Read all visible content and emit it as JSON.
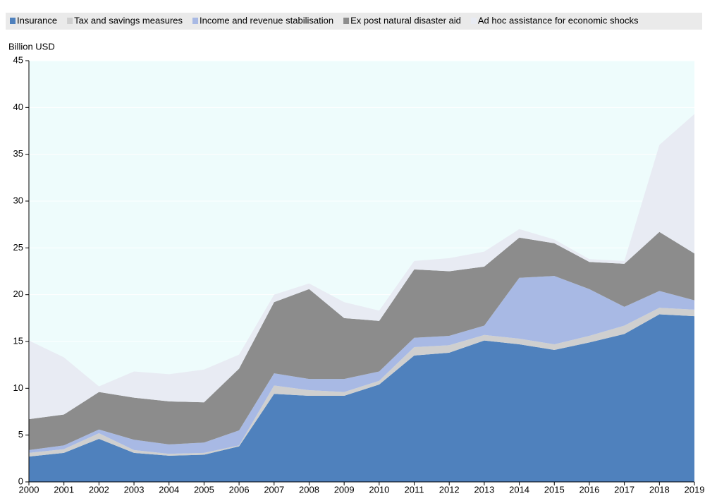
{
  "chart_data": {
    "type": "stacked-area",
    "y_label": "Billion USD",
    "categories": [
      "2000",
      "2001",
      "2002",
      "2003",
      "2004",
      "2005",
      "2006",
      "2007",
      "2008",
      "2009",
      "2010",
      "2011",
      "2012",
      "2013",
      "2014",
      "2015",
      "2016",
      "2017",
      "2018",
      "2019"
    ],
    "series": [
      {
        "name": "Insurance",
        "color": "#4f81bd",
        "values": [
          2.7,
          3.1,
          4.6,
          3.1,
          2.8,
          2.9,
          3.8,
          9.4,
          9.2,
          9.2,
          10.4,
          13.5,
          13.8,
          15.1,
          14.7,
          14.1,
          14.9,
          15.8,
          17.9,
          17.7
        ]
      },
      {
        "name": "Tax and savings measures",
        "color": "#cfcfcf",
        "values": [
          0.4,
          0.4,
          0.6,
          0.3,
          0.2,
          0.2,
          0.1,
          0.9,
          0.6,
          0.4,
          0.4,
          0.9,
          0.8,
          0.6,
          0.6,
          0.6,
          0.7,
          0.9,
          0.7,
          0.7
        ]
      },
      {
        "name": "Income and revenue stabilisation",
        "color": "#a8b9e4",
        "values": [
          0.3,
          0.4,
          0.4,
          1.1,
          1.0,
          1.1,
          1.6,
          1.3,
          1.2,
          1.4,
          1.0,
          1.0,
          1.0,
          1.0,
          6.5,
          7.3,
          5.0,
          2.0,
          1.8,
          1.0
        ]
      },
      {
        "name": "Ex post natural disaster aid",
        "color": "#8c8c8c",
        "values": [
          3.3,
          3.3,
          4.0,
          4.5,
          4.6,
          4.3,
          6.6,
          7.6,
          9.6,
          6.5,
          5.4,
          7.3,
          6.9,
          6.3,
          4.3,
          3.5,
          2.9,
          4.6,
          6.3,
          5.0
        ]
      },
      {
        "name": "Ad hoc assistance for economic shocks",
        "color": "#e8ebf3",
        "values": [
          8.4,
          6.1,
          0.6,
          2.8,
          2.9,
          3.5,
          1.5,
          0.8,
          0.6,
          1.7,
          1.1,
          0.9,
          1.4,
          1.6,
          0.9,
          0.4,
          0.3,
          0.3,
          9.3,
          14.9
        ]
      }
    ],
    "ylim": [
      0,
      45
    ],
    "yticks": [
      0,
      5,
      10,
      15,
      20,
      25,
      30,
      35,
      40,
      45
    ],
    "grid": true
  }
}
